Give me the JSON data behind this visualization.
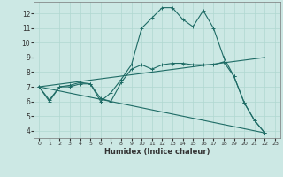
{
  "xlabel": "Humidex (Indice chaleur)",
  "background_color": "#cce8e4",
  "grid_color": "#b0d8d0",
  "line_color": "#1e6b65",
  "xlim": [
    -0.5,
    23.5
  ],
  "ylim": [
    3.5,
    12.8
  ],
  "yticks": [
    4,
    5,
    6,
    7,
    8,
    9,
    10,
    11,
    12
  ],
  "xticks": [
    0,
    1,
    2,
    3,
    4,
    5,
    6,
    7,
    8,
    9,
    10,
    11,
    12,
    13,
    14,
    15,
    16,
    17,
    18,
    19,
    20,
    21,
    22,
    23
  ],
  "line_main": {
    "x": [
      0,
      1,
      2,
      3,
      4,
      5,
      6,
      7,
      8,
      9,
      10,
      11,
      12,
      13,
      14,
      15,
      16,
      17,
      18,
      19,
      20,
      21,
      22
    ],
    "y": [
      7.0,
      6.0,
      7.0,
      7.1,
      7.3,
      7.2,
      6.0,
      6.6,
      7.5,
      8.5,
      11.0,
      11.7,
      12.4,
      12.4,
      11.6,
      11.1,
      12.2,
      11.0,
      9.0,
      7.7,
      5.9,
      4.7,
      3.85
    ]
  },
  "line_mid": {
    "x": [
      0,
      1,
      2,
      3,
      4,
      5,
      6,
      7,
      8,
      9,
      10,
      11,
      12,
      13,
      14,
      15,
      16,
      17,
      18,
      19,
      20,
      21,
      22
    ],
    "y": [
      7.0,
      6.1,
      7.0,
      7.0,
      7.2,
      7.2,
      6.2,
      6.0,
      7.3,
      8.2,
      8.5,
      8.2,
      8.5,
      8.6,
      8.6,
      8.5,
      8.5,
      8.5,
      8.7,
      7.7,
      5.9,
      4.7,
      3.85
    ]
  },
  "trend_up": {
    "x": [
      0,
      22
    ],
    "y": [
      7.0,
      9.0
    ]
  },
  "trend_down": {
    "x": [
      0,
      22
    ],
    "y": [
      7.0,
      3.85
    ]
  }
}
